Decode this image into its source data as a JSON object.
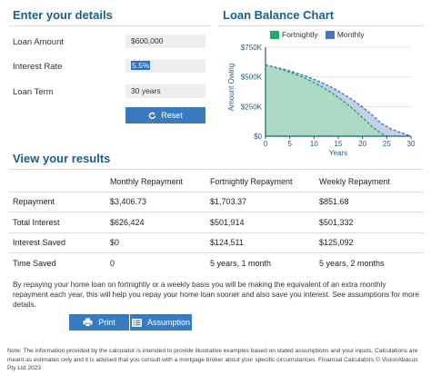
{
  "details": {
    "title": "Enter your details",
    "loan_amount_label": "Loan Amount",
    "loan_amount_value": "$600,000",
    "interest_rate_label": "Interest Rate",
    "interest_rate_value": "5.5%",
    "loan_term_label": "Loan Term",
    "loan_term_value": "30 years",
    "reset_label": "Reset"
  },
  "chart": {
    "title": "Loan Balance Chart",
    "legend": [
      {
        "label": "Fortnightly",
        "color": "#2aa86a"
      },
      {
        "label": "Monthly",
        "color": "#4a73b8"
      }
    ]
  },
  "chart_data": {
    "type": "area",
    "ylabel": "Amount Owing",
    "xlabel": "Years",
    "xlim": [
      0,
      30
    ],
    "ylim": [
      0,
      750000
    ],
    "x_ticks": [
      0,
      5,
      10,
      15,
      20,
      25,
      30
    ],
    "y_ticks": [
      {
        "value": 0,
        "label": "$0"
      },
      {
        "value": 250000,
        "label": "$250K"
      },
      {
        "value": 500000,
        "label": "$500K"
      },
      {
        "value": 750000,
        "label": "$750K"
      }
    ],
    "series": [
      {
        "name": "Monthly",
        "color": "#4a73b8",
        "fill": "#b8c8e6",
        "x": [
          0,
          2,
          4,
          6,
          8,
          10,
          12,
          14,
          16,
          18,
          20,
          22,
          24,
          26,
          28,
          30
        ],
        "y": [
          600000,
          582000,
          562000,
          538000,
          511000,
          480000,
          444000,
          404000,
          357000,
          305000,
          246000,
          179000,
          105000,
          58000,
          30000,
          0
        ]
      },
      {
        "name": "Fortnightly",
        "color": "#2aa86a",
        "fill": "#a8dcbf",
        "x": [
          0,
          2,
          4,
          6,
          8,
          10,
          12,
          14,
          16,
          18,
          20,
          22,
          24,
          25
        ],
        "y": [
          600000,
          578000,
          553000,
          524000,
          491000,
          452000,
          408000,
          357000,
          298000,
          232000,
          156000,
          80000,
          20000,
          0
        ]
      }
    ]
  },
  "results": {
    "title": "View your results",
    "headers": [
      "",
      "Monthly Repayment",
      "Fortnightly Repayment",
      "Weekly Repayment"
    ],
    "rows": [
      [
        "Repayment",
        "$3,406.73",
        "$1,703.37",
        "$851.68"
      ],
      [
        "Total Interest",
        "$626,424",
        "$501,914",
        "$501,332"
      ],
      [
        "Interest Saved",
        "$0",
        "$124,511",
        "$125,092"
      ],
      [
        "Time Saved",
        "0",
        "5 years, 1 month",
        "5 years, 2 months"
      ]
    ],
    "summary": "By repaying your home loan on fortnightly or a weekly basis you will be making the equivalent of an extra monthly repayment each year, this will help you repay your home loan sooner and also save you interest. See assumptions for more details."
  },
  "buttons": {
    "print_label": "Print",
    "assumption_label": "Assumption"
  },
  "note": "Note: The information provided by the calculator is intended to provide illustrative examples based on stated assumptions and your inputs. Calculations are meant as estimates only and it is advised that you consult with a mortgage broker about your specific circumstances. Financial Calculators © VisionAbacus Pty Ltd 2023"
}
